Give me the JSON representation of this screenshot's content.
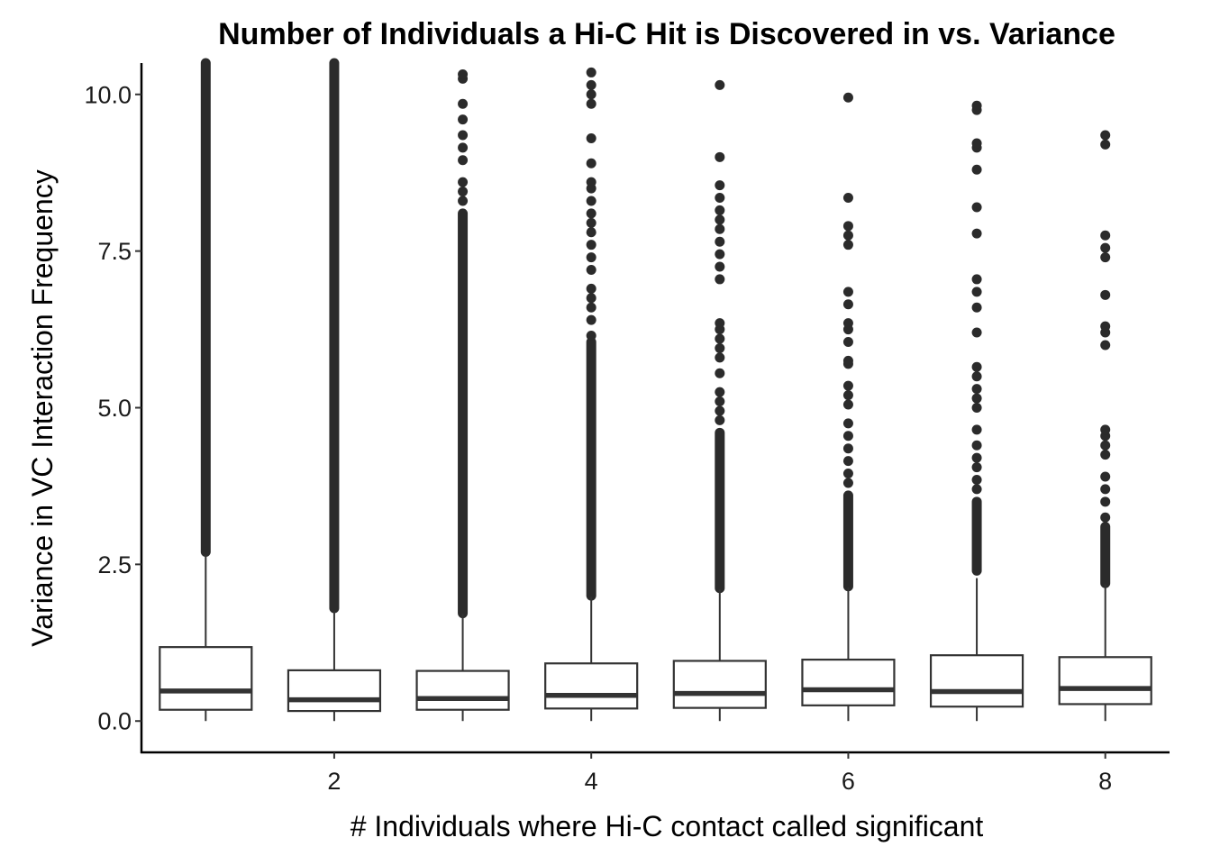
{
  "chart_data": {
    "type": "boxplot",
    "title": "Number of Individuals a Hi-C Hit is Discovered in vs. Variance",
    "xlabel": "# Individuals where Hi-C contact called significant",
    "ylabel": "Variance in VC Interaction Frequency",
    "xlim": [
      0.5,
      8.5
    ],
    "ylim": [
      -0.5,
      10.5
    ],
    "x_ticks": [
      {
        "value": 2,
        "label": "2"
      },
      {
        "value": 4,
        "label": "4"
      },
      {
        "value": 6,
        "label": "6"
      },
      {
        "value": 8,
        "label": "8"
      }
    ],
    "y_ticks": [
      {
        "value": 0.0,
        "label": "0.0"
      },
      {
        "value": 2.5,
        "label": "2.5"
      },
      {
        "value": 5.0,
        "label": "5.0"
      },
      {
        "value": 7.5,
        "label": "7.5"
      },
      {
        "value": 10.0,
        "label": "10.0"
      }
    ],
    "grid": false,
    "legend": "none",
    "colors": {
      "box_fill": "#ffffff",
      "box_line": "#333333",
      "outlier": "#2b2b2b",
      "axis": "#000000"
    },
    "boxes": [
      {
        "x": 1,
        "q1": 0.18,
        "median": 0.48,
        "q3": 1.18,
        "whisker_low": 0.0,
        "whisker_high": 2.65
      },
      {
        "x": 2,
        "q1": 0.16,
        "median": 0.34,
        "q3": 0.81,
        "whisker_low": 0.0,
        "whisker_high": 1.76
      },
      {
        "x": 3,
        "q1": 0.18,
        "median": 0.36,
        "q3": 0.8,
        "whisker_low": 0.0,
        "whisker_high": 1.71
      },
      {
        "x": 4,
        "q1": 0.2,
        "median": 0.41,
        "q3": 0.92,
        "whisker_low": 0.0,
        "whisker_high": 1.98
      },
      {
        "x": 5,
        "q1": 0.21,
        "median": 0.44,
        "q3": 0.96,
        "whisker_low": 0.0,
        "whisker_high": 2.1
      },
      {
        "x": 6,
        "q1": 0.25,
        "median": 0.5,
        "q3": 0.98,
        "whisker_low": 0.0,
        "whisker_high": 2.13
      },
      {
        "x": 7,
        "q1": 0.23,
        "median": 0.47,
        "q3": 1.05,
        "whisker_low": 0.0,
        "whisker_high": 2.28
      },
      {
        "x": 8,
        "q1": 0.27,
        "median": 0.52,
        "q3": 1.02,
        "whisker_low": 0.0,
        "whisker_high": 2.18
      }
    ],
    "outliers": [
      {
        "x": 1,
        "dense_range": [
          2.7,
          10.5
        ],
        "values": []
      },
      {
        "x": 2,
        "dense_range": [
          1.8,
          10.5
        ],
        "values": []
      },
      {
        "x": 3,
        "dense_range": [
          1.72,
          8.1
        ],
        "values": [
          8.3,
          8.45,
          8.6,
          8.95,
          9.15,
          9.35,
          9.6,
          9.85,
          10.25,
          10.32
        ]
      },
      {
        "x": 4,
        "dense_range": [
          2.0,
          6.05
        ],
        "values": [
          6.15,
          6.4,
          6.6,
          6.75,
          6.9,
          7.2,
          7.4,
          7.6,
          7.8,
          7.95,
          8.1,
          8.3,
          8.5,
          8.6,
          8.9,
          9.3,
          9.85,
          10.0,
          10.15,
          10.35
        ]
      },
      {
        "x": 5,
        "dense_range": [
          2.12,
          4.6
        ],
        "values": [
          4.8,
          4.95,
          5.1,
          5.25,
          5.55,
          5.8,
          5.95,
          6.1,
          6.25,
          6.35,
          7.05,
          7.25,
          7.45,
          7.65,
          7.85,
          8.0,
          8.15,
          8.35,
          8.55,
          9.0,
          10.15
        ]
      },
      {
        "x": 6,
        "dense_range": [
          2.15,
          3.6
        ],
        "values": [
          3.8,
          3.95,
          4.15,
          4.35,
          4.55,
          4.75,
          5.05,
          5.2,
          5.35,
          5.7,
          5.75,
          6.05,
          6.25,
          6.35,
          6.65,
          6.85,
          7.6,
          7.75,
          7.9,
          8.35,
          9.95
        ]
      },
      {
        "x": 7,
        "dense_range": [
          2.4,
          3.5
        ],
        "values": [
          3.7,
          3.85,
          4.05,
          4.2,
          4.4,
          4.65,
          5.0,
          5.15,
          5.3,
          5.5,
          5.65,
          6.2,
          6.6,
          6.85,
          7.05,
          7.78,
          8.2,
          8.8,
          9.15,
          9.22,
          9.75,
          9.82
        ]
      },
      {
        "x": 8,
        "dense_range": [
          2.2,
          3.1
        ],
        "values": [
          3.25,
          3.5,
          3.7,
          3.9,
          4.25,
          4.4,
          4.55,
          4.65,
          6.0,
          6.2,
          6.3,
          6.8,
          7.4,
          7.55,
          7.75,
          9.2,
          9.35
        ]
      }
    ]
  }
}
